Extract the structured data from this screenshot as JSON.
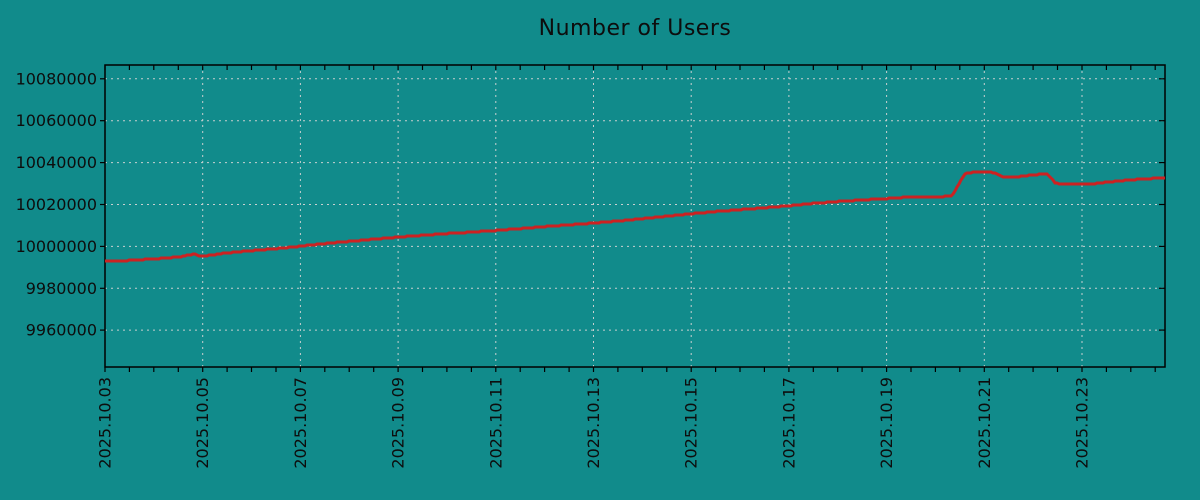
{
  "chart_data": {
    "type": "line",
    "title": "Number of Users",
    "background_color": "#118b8b",
    "line_color": "#cc2222",
    "grid_color": "#c8d0d0",
    "axis_color": "#000000",
    "text_color": "#0d0d0d",
    "grid": true,
    "legend": "none",
    "x_axis": {
      "tick_labels": [
        "2025.10.03",
        "2025.10.05",
        "2025.10.07",
        "2025.10.09",
        "2025.10.11",
        "2025.10.13",
        "2025.10.15",
        "2025.10.17",
        "2025.10.19",
        "2025.10.21",
        "2025.10.23"
      ],
      "tick_offsets_days": [
        0,
        2,
        4,
        6,
        8,
        10,
        12,
        14,
        16,
        18,
        20
      ],
      "minor_tick_interval_days": 0.5,
      "range_days": [
        0,
        21.7
      ]
    },
    "y_axis": {
      "tick_values": [
        9960000,
        9980000,
        10000000,
        10020000,
        10040000,
        10060000,
        10080000
      ],
      "tick_labels": [
        "9960000",
        "9980000",
        "10000000",
        "10020000",
        "10040000",
        "10060000",
        "10080000"
      ],
      "range": [
        9942400,
        10086600
      ]
    },
    "series": [
      {
        "name": "Number of Users",
        "color": "#cc2222",
        "points_day_value": [
          [
            0.0,
            9992800
          ],
          [
            0.5,
            9993300
          ],
          [
            1.0,
            9994000
          ],
          [
            1.5,
            9994900
          ],
          [
            1.72,
            9995900
          ],
          [
            1.85,
            9996300
          ],
          [
            1.95,
            9995400
          ],
          [
            2.15,
            9995700
          ],
          [
            2.5,
            9996900
          ],
          [
            3.0,
            9997900
          ],
          [
            3.5,
            9998900
          ],
          [
            4.0,
            10000100
          ],
          [
            4.5,
            10001300
          ],
          [
            5.0,
            10002400
          ],
          [
            5.5,
            10003400
          ],
          [
            6.0,
            10004400
          ],
          [
            6.5,
            10005300
          ],
          [
            7.0,
            10006100
          ],
          [
            7.5,
            10006800
          ],
          [
            8.0,
            10007600
          ],
          [
            8.5,
            10008500
          ],
          [
            9.0,
            10009400
          ],
          [
            9.5,
            10010300
          ],
          [
            10.0,
            10011100
          ],
          [
            10.5,
            10012100
          ],
          [
            11.0,
            10013200
          ],
          [
            11.5,
            10014400
          ],
          [
            12.0,
            10015600
          ],
          [
            12.5,
            10016600
          ],
          [
            13.0,
            10017500
          ],
          [
            13.5,
            10018400
          ],
          [
            14.0,
            10019400
          ],
          [
            14.5,
            10020500
          ],
          [
            15.0,
            10021400
          ],
          [
            15.5,
            10022200
          ],
          [
            16.0,
            10022800
          ],
          [
            16.35,
            10023400
          ],
          [
            17.0,
            10023700
          ],
          [
            17.33,
            10023900
          ],
          [
            17.45,
            10028500
          ],
          [
            17.6,
            10034600
          ],
          [
            17.75,
            10035300
          ],
          [
            18.1,
            10035400
          ],
          [
            18.25,
            10034900
          ],
          [
            18.38,
            10032900
          ],
          [
            18.55,
            10033100
          ],
          [
            18.8,
            10033500
          ],
          [
            19.05,
            10034300
          ],
          [
            19.3,
            10034400
          ],
          [
            19.45,
            10030300
          ],
          [
            19.6,
            10029700
          ],
          [
            20.15,
            10029700
          ],
          [
            20.6,
            10030900
          ],
          [
            21.1,
            10031900
          ],
          [
            21.7,
            10032800
          ]
        ]
      }
    ]
  }
}
